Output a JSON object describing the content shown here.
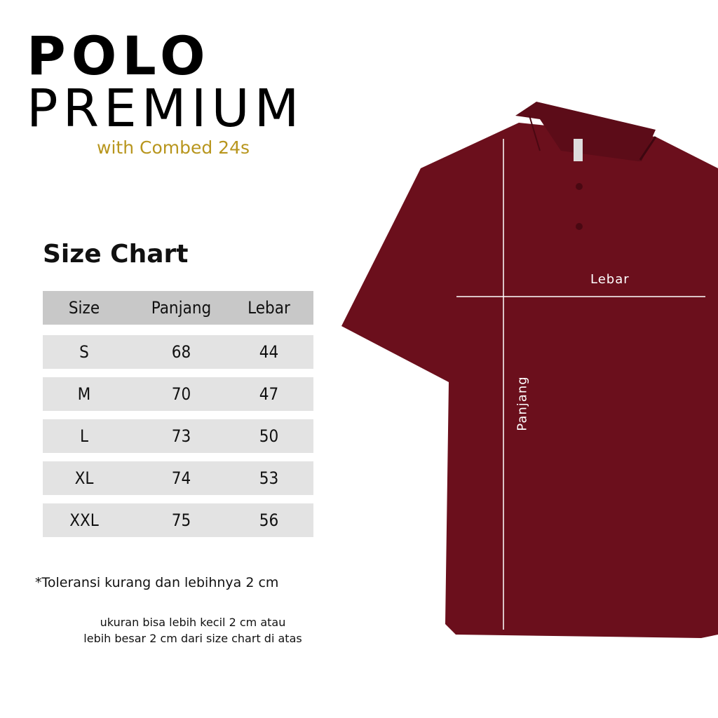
{
  "title": {
    "line1": "POLO",
    "line2": "PREMIUM",
    "subtitle": "with Combed 24s"
  },
  "size_chart": {
    "heading": "Size Chart",
    "columns": [
      "Size",
      "Panjang",
      "Lebar"
    ],
    "rows": [
      [
        "S",
        "68",
        "44"
      ],
      [
        "M",
        "70",
        "47"
      ],
      [
        "L",
        "73",
        "50"
      ],
      [
        "XL",
        "74",
        "53"
      ],
      [
        "XXL",
        "75",
        "56"
      ]
    ]
  },
  "notes": {
    "tolerance": "*Toleransi kurang dan lebihnya 2 cm",
    "line1": "ukuran bisa lebih kecil 2 cm atau",
    "line2": "lebih besar 2 cm dari size chart di atas"
  },
  "product_image": {
    "color": "#6b0f1c",
    "labels": {
      "width": "Lebar",
      "length": "Panjang"
    }
  },
  "colors": {
    "accent": "#b8961e",
    "header_row": "#c8c8c8",
    "row": "#e3e3e3"
  }
}
